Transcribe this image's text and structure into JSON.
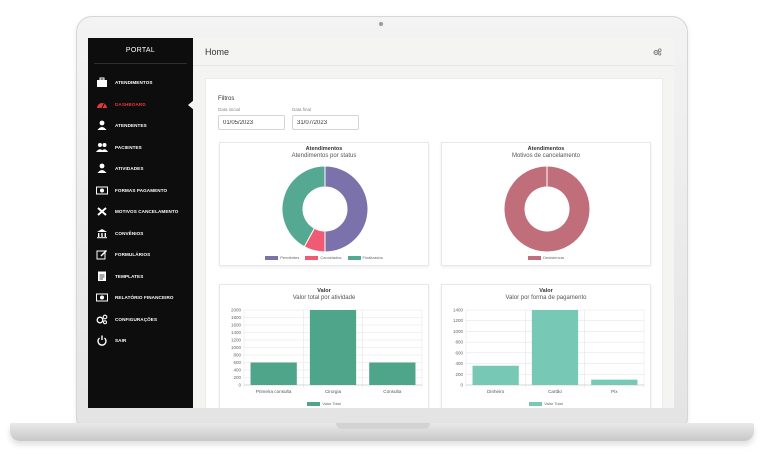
{
  "app": {
    "brand": "PORTAL"
  },
  "sidebar": {
    "items": [
      {
        "label": "ATENDIMENTOS",
        "icon": "briefcase-icon",
        "active": false
      },
      {
        "label": "DASHBOARD",
        "icon": "dashboard-icon",
        "active": true
      },
      {
        "label": "ATENDENTES",
        "icon": "user-icon",
        "active": false
      },
      {
        "label": "PACIENTES",
        "icon": "users-icon",
        "active": false
      },
      {
        "label": "ATIVIDADES",
        "icon": "user-icon",
        "active": false
      },
      {
        "label": "FORMAS PAGAMENTO",
        "icon": "money-icon",
        "active": false
      },
      {
        "label": "MOTIVOS CANCELAMENTO",
        "icon": "close-icon",
        "active": false
      },
      {
        "label": "CONVÊNIOS",
        "icon": "bank-icon",
        "active": false
      },
      {
        "label": "FORMULÁRIOS",
        "icon": "edit-icon",
        "active": false
      },
      {
        "label": "TEMPLATES",
        "icon": "document-icon",
        "active": false
      },
      {
        "label": "RELATÓRIO FINANCEIRO",
        "icon": "money-icon",
        "active": false
      },
      {
        "label": "CONFIGURAÇÕES",
        "icon": "gears-icon",
        "active": false
      },
      {
        "label": "SAIR",
        "icon": "power-icon",
        "active": false
      }
    ]
  },
  "header": {
    "title": "Home",
    "settings_icon": "gears-icon"
  },
  "filters": {
    "title": "Filtros",
    "start_label": "Data inicial",
    "start_value": "01/05/2023",
    "end_label": "Data final",
    "end_value": "31/07/2023"
  },
  "colors": {
    "accent_red": "#e53935",
    "pendentes": "#7b72ab",
    "cancelados": "#ef5b73",
    "finalizados": "#55a992",
    "desistencia": "#c06f7a",
    "bar1": "#4fa58a",
    "bar2": "#77c9b6"
  },
  "chart_data": [
    {
      "type": "pie",
      "title": "Atendimentos",
      "subtitle": "Atendimentos por status",
      "categories": [
        "Pendentes",
        "Cancelados",
        "Finalizados"
      ],
      "values": [
        50,
        8,
        42
      ],
      "colors": [
        "#7b72ab",
        "#ef5b73",
        "#55a992"
      ],
      "legend": "bottom"
    },
    {
      "type": "pie",
      "title": "Atendimentos",
      "subtitle": "Motivos de cancelamento",
      "categories": [
        "Desistencia"
      ],
      "values": [
        100
      ],
      "colors": [
        "#c06f7a"
      ],
      "legend": "bottom"
    },
    {
      "type": "bar",
      "title": "Valor",
      "subtitle": "Valor total por atividade",
      "categories": [
        "Primeira consulta",
        "Cirurgia",
        "Consulta"
      ],
      "series": [
        {
          "name": "Valor Total",
          "values": [
            600,
            2000,
            600
          ]
        }
      ],
      "yticks": [
        0,
        200,
        400,
        600,
        800,
        1000,
        1200,
        1400,
        1600,
        1800,
        2000
      ],
      "ylim": [
        0,
        2000
      ],
      "color": "#4fa58a",
      "grid": true,
      "legend": "bottom"
    },
    {
      "type": "bar",
      "title": "Valor",
      "subtitle": "Valor por forma de pagamento",
      "categories": [
        "Dinheiro",
        "Cartão",
        "Pix"
      ],
      "series": [
        {
          "name": "Valor Total",
          "values": [
            360,
            1400,
            100
          ]
        }
      ],
      "yticks": [
        0,
        200,
        400,
        600,
        800,
        1000,
        1200,
        1400
      ],
      "ylim": [
        0,
        1400
      ],
      "color": "#77c9b6",
      "grid": true,
      "legend": "bottom"
    }
  ]
}
